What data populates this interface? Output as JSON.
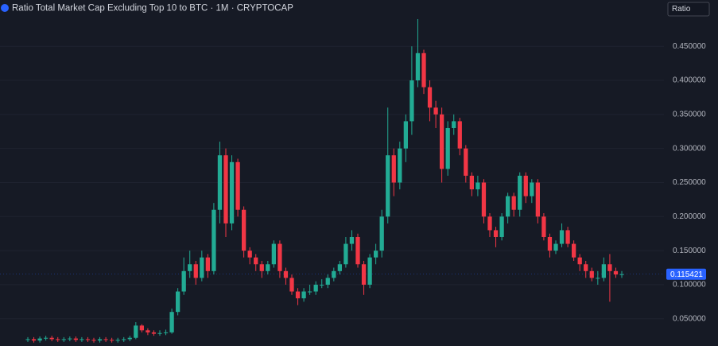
{
  "chart_data": {
    "type": "candlestick",
    "title": "Ratio Total Market Cap Excluding Top 10 to BTC · 1M · CRYPTOCAP",
    "scale_mode": "Ratio",
    "up_color": "#22ab94",
    "down_color": "#f23645",
    "last_price_color": "#2962ff",
    "grid": true,
    "ylim": [
      0.01,
      0.518
    ],
    "yticks": [
      {
        "value": 0.05,
        "label": "0.050000"
      },
      {
        "value": 0.1,
        "label": "0.100000"
      },
      {
        "value": 0.15,
        "label": "0.150000"
      },
      {
        "value": 0.2,
        "label": "0.200000"
      },
      {
        "value": 0.25,
        "label": "0.250000"
      },
      {
        "value": 0.3,
        "label": "0.300000"
      },
      {
        "value": 0.35,
        "label": "0.350000"
      },
      {
        "value": 0.4,
        "label": "0.400000"
      },
      {
        "value": 0.45,
        "label": "0.450000"
      }
    ],
    "open": [
      0.019,
      0.02,
      0.018,
      0.021,
      0.022,
      0.02,
      0.019,
      0.02,
      0.021,
      0.019,
      0.02,
      0.019,
      0.018,
      0.02,
      0.019,
      0.018,
      0.019,
      0.02,
      0.022,
      0.04,
      0.033,
      0.03,
      0.028,
      0.029,
      0.03,
      0.06,
      0.09,
      0.12,
      0.13,
      0.11,
      0.14,
      0.12,
      0.21,
      0.29,
      0.19,
      0.28,
      0.21,
      0.15,
      0.14,
      0.13,
      0.12,
      0.13,
      0.16,
      0.12,
      0.11,
      0.09,
      0.08,
      0.09,
      0.09,
      0.1,
      0.1,
      0.11,
      0.12,
      0.13,
      0.16,
      0.17,
      0.13,
      0.1,
      0.14,
      0.15,
      0.2,
      0.29,
      0.25,
      0.3,
      0.34,
      0.4,
      0.44,
      0.39,
      0.36,
      0.35,
      0.27,
      0.33,
      0.34,
      0.3,
      0.26,
      0.24,
      0.25,
      0.2,
      0.18,
      0.17,
      0.2,
      0.23,
      0.21,
      0.26,
      0.23,
      0.25,
      0.2,
      0.17,
      0.15,
      0.16,
      0.18,
      0.16,
      0.14,
      0.13,
      0.12,
      0.11,
      0.11,
      0.13,
      0.12,
      0.115
    ],
    "high": [
      0.023,
      0.023,
      0.024,
      0.025,
      0.025,
      0.023,
      0.023,
      0.024,
      0.024,
      0.023,
      0.023,
      0.022,
      0.023,
      0.023,
      0.022,
      0.022,
      0.023,
      0.025,
      0.045,
      0.042,
      0.036,
      0.033,
      0.033,
      0.034,
      0.065,
      0.095,
      0.14,
      0.15,
      0.135,
      0.15,
      0.145,
      0.22,
      0.31,
      0.3,
      0.29,
      0.285,
      0.215,
      0.155,
      0.145,
      0.135,
      0.135,
      0.165,
      0.165,
      0.125,
      0.115,
      0.095,
      0.095,
      0.1,
      0.105,
      0.108,
      0.115,
      0.125,
      0.135,
      0.17,
      0.18,
      0.175,
      0.135,
      0.145,
      0.16,
      0.21,
      0.36,
      0.3,
      0.31,
      0.35,
      0.45,
      0.49,
      0.445,
      0.4,
      0.37,
      0.36,
      0.34,
      0.35,
      0.345,
      0.305,
      0.265,
      0.26,
      0.255,
      0.205,
      0.185,
      0.205,
      0.235,
      0.235,
      0.265,
      0.265,
      0.255,
      0.255,
      0.205,
      0.175,
      0.165,
      0.19,
      0.185,
      0.165,
      0.145,
      0.135,
      0.125,
      0.12,
      0.14,
      0.145,
      0.125,
      0.12
    ],
    "low": [
      0.016,
      0.015,
      0.015,
      0.018,
      0.017,
      0.016,
      0.016,
      0.017,
      0.016,
      0.016,
      0.016,
      0.015,
      0.015,
      0.016,
      0.015,
      0.015,
      0.016,
      0.017,
      0.02,
      0.03,
      0.026,
      0.025,
      0.025,
      0.026,
      0.028,
      0.055,
      0.085,
      0.11,
      0.1,
      0.105,
      0.11,
      0.115,
      0.19,
      0.17,
      0.18,
      0.2,
      0.14,
      0.13,
      0.12,
      0.11,
      0.115,
      0.125,
      0.11,
      0.1,
      0.085,
      0.07,
      0.075,
      0.085,
      0.085,
      0.095,
      0.095,
      0.105,
      0.115,
      0.125,
      0.15,
      0.125,
      0.085,
      0.095,
      0.13,
      0.14,
      0.19,
      0.23,
      0.24,
      0.28,
      0.32,
      0.39,
      0.38,
      0.34,
      0.33,
      0.25,
      0.26,
      0.32,
      0.29,
      0.25,
      0.23,
      0.23,
      0.19,
      0.17,
      0.155,
      0.165,
      0.19,
      0.2,
      0.2,
      0.22,
      0.22,
      0.19,
      0.165,
      0.14,
      0.145,
      0.155,
      0.155,
      0.135,
      0.12,
      0.11,
      0.105,
      0.1,
      0.105,
      0.075,
      0.11,
      0.11
    ],
    "close": [
      0.02,
      0.018,
      0.021,
      0.022,
      0.02,
      0.019,
      0.02,
      0.021,
      0.019,
      0.02,
      0.019,
      0.018,
      0.02,
      0.019,
      0.018,
      0.019,
      0.02,
      0.022,
      0.04,
      0.033,
      0.03,
      0.028,
      0.029,
      0.03,
      0.06,
      0.09,
      0.12,
      0.13,
      0.11,
      0.14,
      0.12,
      0.21,
      0.29,
      0.19,
      0.28,
      0.21,
      0.15,
      0.14,
      0.13,
      0.12,
      0.13,
      0.16,
      0.12,
      0.11,
      0.09,
      0.08,
      0.09,
      0.09,
      0.1,
      0.1,
      0.11,
      0.12,
      0.13,
      0.16,
      0.17,
      0.13,
      0.1,
      0.14,
      0.15,
      0.2,
      0.29,
      0.25,
      0.3,
      0.34,
      0.4,
      0.44,
      0.39,
      0.36,
      0.35,
      0.27,
      0.33,
      0.34,
      0.3,
      0.26,
      0.24,
      0.25,
      0.2,
      0.18,
      0.17,
      0.2,
      0.23,
      0.21,
      0.26,
      0.23,
      0.25,
      0.2,
      0.17,
      0.15,
      0.16,
      0.18,
      0.16,
      0.14,
      0.13,
      0.12,
      0.11,
      0.11,
      0.13,
      0.12,
      0.115,
      0.115421
    ]
  }
}
